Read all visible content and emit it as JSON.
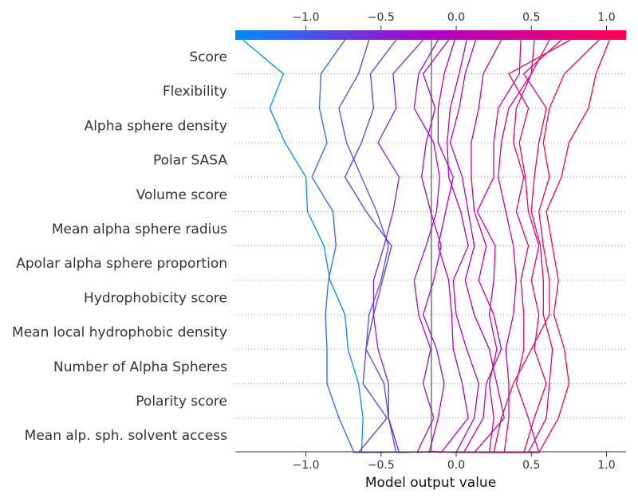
{
  "chart_data": {
    "type": "line",
    "subtype": "decision-plot",
    "xlabel": "Model output value",
    "xlim": [
      -1.47,
      1.13
    ],
    "base_value": -0.165,
    "x_ticks": [
      -1.0,
      -0.5,
      0.0,
      0.5,
      1.0
    ],
    "x_tick_labels": [
      "−1.0",
      "−0.5",
      "0.0",
      "0.5",
      "1.0"
    ],
    "features": [
      "Score",
      "Flexibility",
      "Alpha sphere density",
      "Polar SASA",
      "Volume score",
      "Mean alpha sphere radius",
      "Apolar alpha sphere proportion",
      "Hydrophobicity score",
      "Mean local hydrophobic density",
      "Number of Alpha Spheres",
      "Polarity score",
      "Mean alp. sph. solvent access"
    ],
    "grid": "dotted horizontal",
    "colorbar": {
      "range": [
        -1.0,
        1.0
      ],
      "colors": [
        "#008bfb",
        "#ff0052"
      ],
      "position": "top"
    },
    "series": [
      {
        "output": -1.42,
        "values": [
          -0.165,
          -0.63,
          -0.62,
          -0.65,
          -0.72,
          -0.74,
          -0.84,
          -0.88,
          -0.99,
          -1.0,
          -1.14,
          -1.24,
          -1.15,
          -1.42
        ]
      },
      {
        "output": -0.74,
        "values": [
          -0.165,
          -0.68,
          -0.78,
          -0.86,
          -0.86,
          -0.87,
          -0.85,
          -0.8,
          -0.82,
          -0.96,
          -0.86,
          -0.91,
          -0.9,
          -0.74
        ]
      },
      {
        "output": -0.58,
        "values": [
          -0.165,
          -0.4,
          -0.45,
          -0.48,
          -0.6,
          -0.58,
          -0.5,
          -0.45,
          -0.53,
          -0.63,
          -0.73,
          -0.78,
          -0.65,
          -0.58
        ]
      },
      {
        "output": -0.4,
        "values": [
          -0.165,
          -0.65,
          -0.46,
          -0.62,
          -0.6,
          -0.55,
          -0.49,
          -0.43,
          -0.6,
          -0.74,
          -0.63,
          -0.55,
          -0.57,
          -0.4
        ]
      },
      {
        "output": -0.22,
        "values": [
          -0.165,
          -0.38,
          -0.45,
          -0.45,
          -0.52,
          -0.55,
          -0.55,
          -0.48,
          -0.42,
          -0.38,
          -0.52,
          -0.4,
          -0.42,
          -0.22
        ]
      },
      {
        "output": -0.12,
        "values": [
          -0.165,
          -0.26,
          -0.15,
          -0.22,
          -0.17,
          -0.25,
          -0.28,
          -0.2,
          -0.13,
          -0.11,
          -0.15,
          -0.28,
          -0.25,
          -0.12
        ]
      },
      {
        "output": -0.05,
        "values": [
          -0.165,
          -0.18,
          -0.12,
          -0.08,
          -0.13,
          -0.22,
          -0.15,
          -0.1,
          -0.17,
          -0.23,
          -0.2,
          -0.14,
          -0.22,
          -0.05
        ]
      },
      {
        "output": -0.01,
        "values": [
          -0.165,
          -0.1,
          0.08,
          0.04,
          -0.02,
          -0.03,
          -0.05,
          -0.12,
          -0.07,
          -0.02,
          -0.12,
          -0.12,
          -0.08,
          -0.01
        ]
      },
      {
        "output": 0.07,
        "values": [
          -0.165,
          0.0,
          0.12,
          0.15,
          0.07,
          0.0,
          -0.02,
          0.08,
          0.03,
          -0.05,
          -0.06,
          -0.04,
          0.02,
          0.07
        ]
      },
      {
        "output": 0.13,
        "values": [
          -0.165,
          0.12,
          0.32,
          0.27,
          0.22,
          0.12,
          0.06,
          0.12,
          0.08,
          0.04,
          -0.04,
          0.02,
          0.06,
          0.13
        ]
      },
      {
        "output": 0.3,
        "values": [
          -0.165,
          0.05,
          0.18,
          0.2,
          0.3,
          0.25,
          0.15,
          0.2,
          0.12,
          0.1,
          0.1,
          0.15,
          0.18,
          0.3
        ]
      },
      {
        "output": 0.43,
        "values": [
          -0.165,
          0.22,
          0.25,
          0.22,
          0.27,
          0.22,
          0.25,
          0.26,
          0.14,
          0.25,
          0.25,
          0.28,
          0.42,
          0.43
        ]
      },
      {
        "output": 0.52,
        "values": [
          -0.165,
          0.32,
          0.35,
          0.35,
          0.33,
          0.38,
          0.4,
          0.38,
          0.33,
          0.28,
          0.3,
          0.35,
          0.5,
          0.52
        ]
      },
      {
        "output": 0.62,
        "values": [
          -0.165,
          0.55,
          0.48,
          0.4,
          0.45,
          0.45,
          0.43,
          0.48,
          0.4,
          0.45,
          0.38,
          0.4,
          0.5,
          0.62
        ]
      },
      {
        "output": 0.76,
        "values": [
          -0.165,
          0.45,
          0.52,
          0.6,
          0.52,
          0.55,
          0.5,
          0.55,
          0.48,
          0.46,
          0.42,
          0.48,
          0.35,
          0.76
        ]
      },
      {
        "output": 0.95,
        "values": [
          -0.165,
          0.25,
          0.3,
          0.38,
          0.5,
          0.62,
          0.62,
          0.58,
          0.55,
          0.62,
          0.58,
          0.62,
          0.72,
          0.95
        ]
      },
      {
        "output": 1.02,
        "values": [
          -0.165,
          0.55,
          0.68,
          0.75,
          0.72,
          0.65,
          0.68,
          0.64,
          0.6,
          0.7,
          0.75,
          0.88,
          0.93,
          1.02
        ]
      },
      {
        "output": 0.7,
        "values": [
          -0.165,
          0.48,
          0.6,
          0.62,
          0.64,
          0.58,
          0.58,
          0.56,
          0.5,
          0.52,
          0.55,
          0.6,
          0.45,
          0.7
        ]
      }
    ]
  }
}
